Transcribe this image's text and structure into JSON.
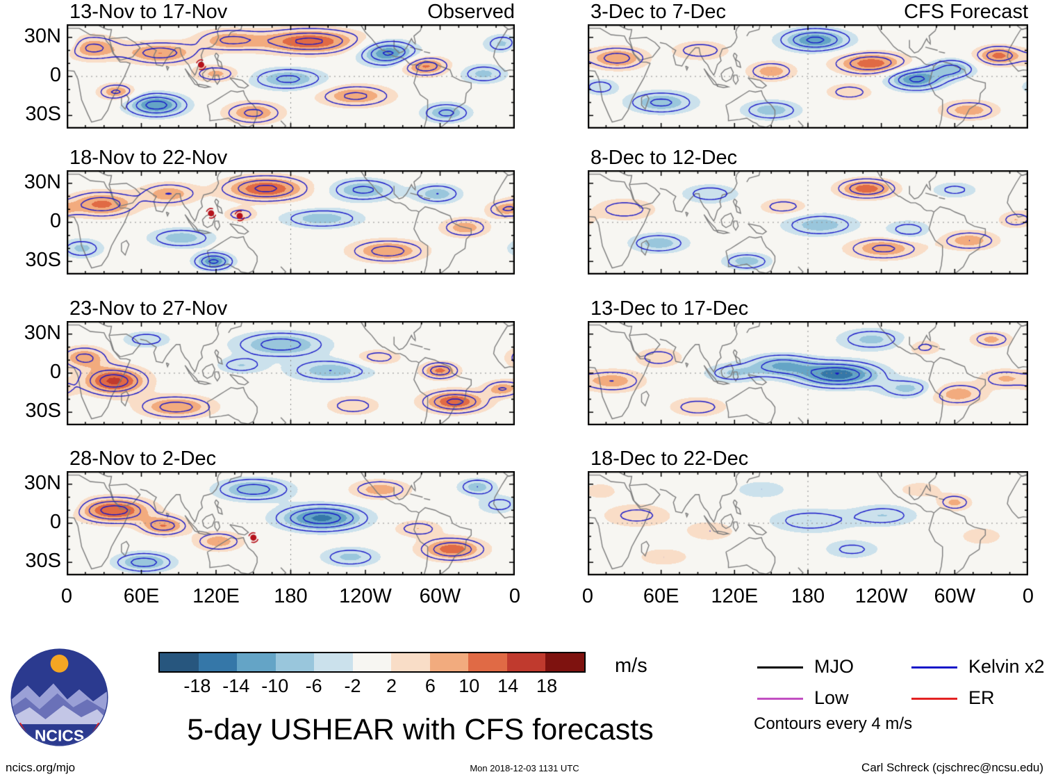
{
  "title": "5-day USHEAR with CFS forecasts",
  "axes": {
    "y_ticks": [
      "30N",
      "0",
      "30S"
    ],
    "x_ticks": [
      "0",
      "60E",
      "120E",
      "180",
      "120W",
      "60W",
      "0"
    ]
  },
  "colorbar": {
    "tick_labels": [
      "-18",
      "-14",
      "-10",
      "-6",
      "-2",
      "2",
      "6",
      "10",
      "14",
      "18"
    ],
    "values": [
      -18,
      -14,
      -10,
      -6,
      -2,
      2,
      6,
      10,
      14,
      18
    ],
    "colors": [
      "#27567e",
      "#3577a8",
      "#64a4c6",
      "#99c6dc",
      "#cbe1ec",
      "#f7f6f2",
      "#f9ddc7",
      "#f2ab7e",
      "#e06a45",
      "#c03a2e",
      "#7e120f"
    ],
    "units": "m/s"
  },
  "legend": {
    "items": [
      {
        "label": "MJO",
        "color": "#000000"
      },
      {
        "label": "Kelvin x2",
        "color": "#1616c8"
      },
      {
        "label": "Low",
        "color": "#c24fc2"
      },
      {
        "label": "ER",
        "color": "#e32222"
      }
    ],
    "note": "Contours every 4 m/s"
  },
  "logo": {
    "text": "NCICS"
  },
  "footer": {
    "left": "ncics.org/mjo",
    "center": "Mon 2018-12-03 1131 UTC",
    "right": "Carl Schreck (cjschrec@ncsu.edu)"
  },
  "chart_data": {
    "type": "heatmap",
    "units": "m/s",
    "lon_range": [
      0,
      360
    ],
    "lat_range": [
      -40,
      40
    ],
    "x_tick_values": [
      0,
      60,
      120,
      180,
      240,
      300,
      360
    ],
    "y_tick_values": [
      30,
      0,
      -30
    ],
    "contour_interval": 4,
    "contour_levels": [
      -16,
      -12,
      -8,
      -4,
      4,
      8,
      12,
      16
    ],
    "panels": [
      {
        "title": "13-Nov to 17-Nov",
        "corner": "Observed",
        "features": [
          [
            20,
            22,
            9,
            22,
            9
          ],
          [
            75,
            18,
            10,
            28,
            8
          ],
          [
            130,
            28,
            8,
            25,
            8
          ],
          [
            195,
            27,
            13,
            40,
            9
          ],
          [
            258,
            18,
            -13,
            22,
            9
          ],
          [
            288,
            8,
            11,
            18,
            7
          ],
          [
            178,
            -2,
            -9,
            28,
            8
          ],
          [
            120,
            2,
            7,
            18,
            6
          ],
          [
            72,
            -22,
            -14,
            22,
            8
          ],
          [
            40,
            -12,
            9,
            14,
            6
          ],
          [
            150,
            -28,
            9,
            22,
            8
          ],
          [
            232,
            -15,
            9,
            28,
            8
          ],
          [
            305,
            -28,
            -9,
            18,
            7
          ],
          [
            335,
            2,
            -7,
            18,
            7
          ],
          [
            352,
            25,
            -8,
            15,
            7
          ]
        ],
        "storms": [
          [
            108,
            9
          ]
        ]
      },
      {
        "title": "18-Nov to 22-Nov",
        "corner": "",
        "features": [
          [
            28,
            14,
            11,
            26,
            9
          ],
          [
            82,
            22,
            8,
            22,
            8
          ],
          [
            160,
            26,
            13,
            32,
            9
          ],
          [
            205,
            3,
            -8,
            30,
            7
          ],
          [
            238,
            25,
            -9,
            26,
            8
          ],
          [
            118,
            -30,
            -13,
            14,
            6
          ],
          [
            92,
            -12,
            -8,
            24,
            7
          ],
          [
            258,
            -22,
            10,
            28,
            8
          ],
          [
            320,
            -4,
            8,
            18,
            7
          ],
          [
            298,
            22,
            -8,
            18,
            7
          ],
          [
            140,
            6,
            6,
            13,
            5
          ],
          [
            12,
            -20,
            -7,
            16,
            7
          ],
          [
            352,
            10,
            7,
            14,
            6
          ]
        ],
        "storms": [
          [
            116,
            7
          ],
          [
            139,
            5
          ]
        ]
      },
      {
        "title": "23-Nov to 27-Nov",
        "corner": "",
        "features": [
          [
            38,
            -6,
            15,
            24,
            10
          ],
          [
            14,
            12,
            9,
            18,
            8
          ],
          [
            88,
            -26,
            10,
            28,
            8
          ],
          [
            172,
            22,
            -10,
            34,
            9
          ],
          [
            212,
            2,
            -8,
            32,
            8
          ],
          [
            140,
            6,
            -6,
            18,
            6
          ],
          [
            250,
            12,
            6,
            18,
            6
          ],
          [
            312,
            -22,
            13,
            24,
            8
          ],
          [
            300,
            2,
            11,
            14,
            6
          ],
          [
            350,
            -12,
            8,
            14,
            6
          ],
          [
            64,
            26,
            -6,
            18,
            6
          ],
          [
            230,
            -25,
            6,
            20,
            7
          ]
        ],
        "storms": []
      },
      {
        "title": "28-Nov to 2-Dec",
        "corner": "",
        "features": [
          [
            38,
            10,
            14,
            28,
            9
          ],
          [
            78,
            -2,
            10,
            18,
            7
          ],
          [
            150,
            26,
            -10,
            28,
            8
          ],
          [
            205,
            4,
            -15,
            32,
            9
          ],
          [
            252,
            26,
            8,
            22,
            7
          ],
          [
            282,
            -4,
            6,
            18,
            6
          ],
          [
            310,
            -20,
            12,
            24,
            8
          ],
          [
            62,
            -30,
            -10,
            22,
            7
          ],
          [
            122,
            -14,
            8,
            18,
            7
          ],
          [
            350,
            14,
            -6,
            18,
            7
          ],
          [
            228,
            -26,
            -7,
            22,
            7
          ],
          [
            330,
            28,
            -8,
            14,
            6
          ]
        ],
        "storms": [
          [
            150,
            -11
          ]
        ]
      },
      {
        "title": "3-Dec to 7-Dec",
        "corner": "CFS Forecast",
        "features": [
          [
            24,
            14,
            10,
            22,
            8
          ],
          [
            92,
            20,
            6,
            22,
            7
          ],
          [
            186,
            28,
            -13,
            26,
            8
          ],
          [
            150,
            4,
            8,
            18,
            7
          ],
          [
            232,
            10,
            12,
            28,
            8
          ],
          [
            268,
            -2,
            -13,
            22,
            8
          ],
          [
            298,
            6,
            -9,
            18,
            7
          ],
          [
            336,
            16,
            11,
            18,
            7
          ],
          [
            60,
            -20,
            -9,
            26,
            8
          ],
          [
            150,
            -26,
            -8,
            22,
            7
          ],
          [
            312,
            -26,
            8,
            22,
            7
          ],
          [
            214,
            -12,
            6,
            18,
            6
          ],
          [
            10,
            -8,
            -6,
            14,
            6
          ]
        ],
        "storms": []
      },
      {
        "title": "8-Dec to 12-Dec",
        "corner": "",
        "features": [
          [
            30,
            10,
            6,
            24,
            8
          ],
          [
            100,
            22,
            -6,
            22,
            7
          ],
          [
            160,
            12,
            6,
            18,
            6
          ],
          [
            228,
            26,
            12,
            22,
            7
          ],
          [
            190,
            -2,
            -8,
            28,
            8
          ],
          [
            262,
            -6,
            -6,
            18,
            7
          ],
          [
            242,
            -20,
            9,
            28,
            8
          ],
          [
            312,
            -14,
            8,
            22,
            7
          ],
          [
            58,
            -16,
            -8,
            22,
            7
          ],
          [
            350,
            2,
            6,
            13,
            6
          ],
          [
            130,
            -30,
            -8,
            18,
            6
          ],
          [
            300,
            25,
            -5,
            18,
            6
          ]
        ],
        "storms": []
      },
      {
        "title": "13-Dec to 17-Dec",
        "corner": "",
        "features": [
          [
            205,
            -1,
            -16,
            32,
            9
          ],
          [
            158,
            6,
            -10,
            26,
            8
          ],
          [
            118,
            0,
            -6,
            22,
            7
          ],
          [
            20,
            -6,
            8,
            24,
            8
          ],
          [
            58,
            12,
            6,
            18,
            7
          ],
          [
            262,
            -12,
            -7,
            22,
            7
          ],
          [
            302,
            -16,
            8,
            22,
            8
          ],
          [
            340,
            -4,
            6,
            18,
            7
          ],
          [
            232,
            26,
            -7,
            26,
            8
          ],
          [
            90,
            -26,
            6,
            22,
            7
          ],
          [
            330,
            26,
            7,
            16,
            6
          ],
          [
            275,
            20,
            5,
            14,
            6
          ]
        ],
        "storms": []
      },
      {
        "title": "18-Dec to 22-Dec",
        "corner": "",
        "features": [
          [
            40,
            6,
            5,
            28,
            9
          ],
          [
            100,
            -6,
            4,
            22,
            8
          ],
          [
            182,
            2,
            -6,
            32,
            9
          ],
          [
            242,
            6,
            -6,
            26,
            8
          ],
          [
            216,
            -20,
            -5,
            22,
            7
          ],
          [
            300,
            16,
            7,
            13,
            6
          ],
          [
            322,
            -10,
            4,
            18,
            7
          ],
          [
            272,
            26,
            4,
            18,
            6
          ],
          [
            62,
            -26,
            4,
            22,
            7
          ],
          [
            142,
            26,
            -4,
            22,
            7
          ],
          [
            10,
            25,
            4,
            14,
            6
          ]
        ],
        "storms": []
      }
    ]
  }
}
